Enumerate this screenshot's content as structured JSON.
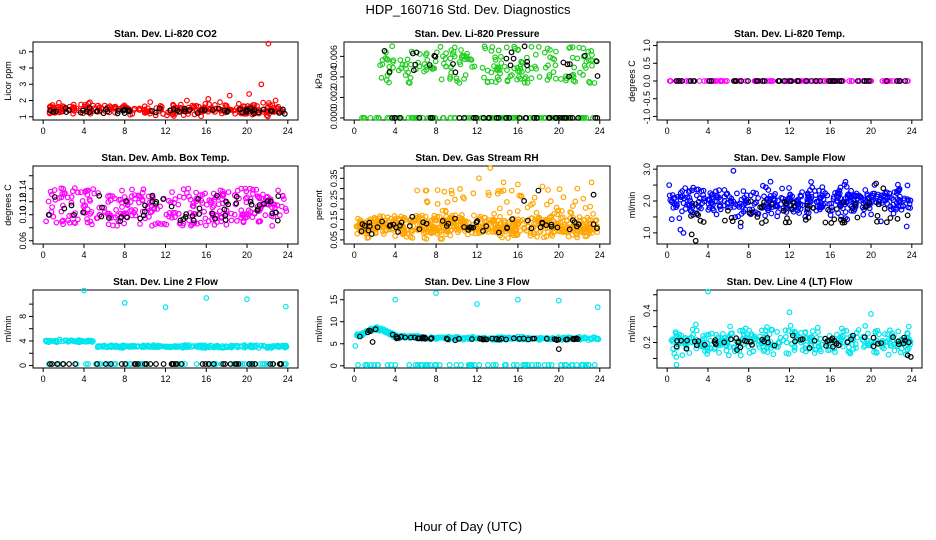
{
  "figure": {
    "title": "HDP_160716  Std. Dev. Diagnostics",
    "xlabel": "Hour of Day (UTC)"
  },
  "colors": {
    "red": "#ff0000",
    "green": "#22cc22",
    "magenta": "#ff00ff",
    "orange": "#ffa500",
    "blue": "#0000ff",
    "cyan": "#00e5ee",
    "black": "#000000"
  },
  "chart_data": [
    {
      "type": "scatter",
      "title": "Stan. Dev. Li-820 CO2",
      "ylabel": "Licor ppm",
      "xlim": [
        -1,
        25
      ],
      "ylim": [
        0.8,
        5.6
      ],
      "xticks": [
        0,
        4,
        8,
        12,
        16,
        20,
        24
      ],
      "yticks": [
        1,
        2,
        3,
        4,
        5
      ],
      "ytick_labels": [
        "1",
        "2",
        "3",
        "4",
        "5"
      ],
      "series": [
        {
          "color": "red",
          "pattern": "band",
          "x_range": [
            0.3,
            23.9
          ],
          "center": 1.45,
          "spread": 0.6,
          "n": 260,
          "extra": [
            [
              22.1,
              5.5
            ],
            [
              21.4,
              3.0
            ],
            [
              20.2,
              2.4
            ],
            [
              18.3,
              2.3
            ],
            [
              22.8,
              2.0
            ],
            [
              16.2,
              2.1
            ],
            [
              14.1,
              2.0
            ],
            [
              10.5,
              1.9
            ]
          ]
        },
        {
          "color": "black",
          "pattern": "band",
          "x_range": [
            0.5,
            23.8
          ],
          "center": 1.35,
          "spread": 0.3,
          "n": 60,
          "extra": []
        }
      ]
    },
    {
      "type": "scatter",
      "title": "Stan. Dev. Li-820 Pressure",
      "ylabel": "kPa",
      "xlim": [
        -1,
        25
      ],
      "ylim": [
        -0.0002,
        0.0074
      ],
      "xticks": [
        0,
        4,
        8,
        12,
        16,
        20,
        24
      ],
      "yticks": [
        0.0,
        0.002,
        0.004,
        0.006
      ],
      "ytick_labels": [
        "0.000",
        "0.002",
        "0.004",
        "0.006"
      ],
      "series": [
        {
          "color": "green",
          "pattern": "baseline",
          "x_range": [
            0.3,
            23.9
          ],
          "center": 0.0,
          "spread": 0.0,
          "n": 90,
          "extra": []
        },
        {
          "color": "green",
          "pattern": "scatter",
          "x_range": [
            2.5,
            23.9
          ],
          "center": 0.0052,
          "spread": 0.0036,
          "n": 200,
          "extra": []
        },
        {
          "color": "black",
          "pattern": "baseline",
          "x_range": [
            0.5,
            23.8
          ],
          "center": 0.0,
          "spread": 0.0,
          "n": 40,
          "extra": []
        },
        {
          "color": "black",
          "pattern": "scatter",
          "x_range": [
            2.5,
            23.8
          ],
          "center": 0.0055,
          "spread": 0.003,
          "n": 25,
          "extra": []
        }
      ]
    },
    {
      "type": "scatter",
      "title": "Stan. Dev. Li-820 Temp.",
      "ylabel": "degrees C",
      "xlim": [
        -1,
        25
      ],
      "ylim": [
        -1.1,
        1.1
      ],
      "xticks": [
        0,
        4,
        8,
        12,
        16,
        20,
        24
      ],
      "yticks": [
        -1.0,
        -0.5,
        0.0,
        0.5,
        1.0
      ],
      "ytick_labels": [
        "-1.0",
        "-0.5",
        "0.0",
        "0.5",
        "1.0"
      ],
      "series": [
        {
          "color": "magenta",
          "pattern": "baseline",
          "x_range": [
            0.2,
            23.9
          ],
          "center": 0.0,
          "spread": 0.0,
          "n": 110,
          "extra": []
        },
        {
          "color": "black",
          "pattern": "baseline",
          "x_range": [
            0.5,
            23.8
          ],
          "center": 0.0,
          "spread": 0.0,
          "n": 45,
          "extra": []
        }
      ]
    },
    {
      "type": "scatter",
      "title": "Stan. Dev. Amb. Box Temp.",
      "ylabel": "degrees C",
      "xlim": [
        -1,
        25
      ],
      "ylim": [
        0.055,
        0.175
      ],
      "xticks": [
        0,
        4,
        8,
        12,
        16,
        20,
        24
      ],
      "yticks": [
        0.06,
        0.08,
        0.1,
        0.12,
        0.14,
        0.16
      ],
      "ytick_labels": [
        "0.06",
        "",
        "0.10",
        "0.12",
        "0.14",
        ""
      ],
      "series": [
        {
          "color": "magenta",
          "pattern": "scatter",
          "x_range": [
            0.2,
            23.9
          ],
          "center": 0.112,
          "spread": 0.058,
          "n": 320,
          "extra": []
        },
        {
          "color": "black",
          "pattern": "scatter",
          "x_range": [
            0.5,
            23.8
          ],
          "center": 0.11,
          "spread": 0.04,
          "n": 55,
          "extra": []
        }
      ]
    },
    {
      "type": "scatter",
      "title": "Stan. Dev. Gas Stream RH",
      "ylabel": "percent",
      "xlim": [
        -1,
        25
      ],
      "ylim": [
        0.03,
        0.41
      ],
      "xticks": [
        0,
        4,
        8,
        12,
        16,
        20,
        24
      ],
      "yticks": [
        0.05,
        0.1,
        0.15,
        0.2,
        0.25,
        0.3,
        0.35,
        0.4
      ],
      "ytick_labels": [
        "0.05",
        "",
        "0.15",
        "",
        "0.25",
        "",
        "0.35",
        ""
      ],
      "series": [
        {
          "color": "orange",
          "pattern": "band",
          "x_range": [
            0.2,
            23.9
          ],
          "center": 0.12,
          "spread": 0.1,
          "n": 520,
          "extra": [
            [
              13.3,
              0.4
            ],
            [
              12.2,
              0.35
            ],
            [
              14.6,
              0.33
            ],
            [
              16.0,
              0.32
            ],
            [
              23.2,
              0.33
            ],
            [
              18.4,
              0.31
            ],
            [
              21.8,
              0.3
            ],
            [
              9.5,
              0.29
            ]
          ]
        },
        {
          "color": "orange",
          "pattern": "scatter",
          "x_range": [
            6,
            23.9
          ],
          "center": 0.24,
          "spread": 0.12,
          "n": 50,
          "extra": []
        },
        {
          "color": "black",
          "pattern": "band",
          "x_range": [
            0.5,
            23.8
          ],
          "center": 0.12,
          "spread": 0.07,
          "n": 55,
          "extra": [
            [
              18.0,
              0.29
            ],
            [
              23.4,
              0.27
            ],
            [
              16.6,
              0.24
            ]
          ]
        }
      ]
    },
    {
      "type": "scatter",
      "title": "Stan. Dev. Sample Flow",
      "ylabel": "ml/min",
      "xlim": [
        -1,
        25
      ],
      "ylim": [
        0.65,
        3.1
      ],
      "xticks": [
        0,
        4,
        8,
        12,
        16,
        20,
        24
      ],
      "yticks": [
        1.0,
        1.5,
        2.0,
        2.5,
        3.0
      ],
      "ytick_labels": [
        "1.0",
        "",
        "2.0",
        "",
        "3.0"
      ],
      "series": [
        {
          "color": "blue",
          "pattern": "band",
          "x_range": [
            0.2,
            23.9
          ],
          "center": 2.0,
          "spread": 0.9,
          "n": 420,
          "extra": [
            [
              6.5,
              2.95
            ],
            [
              0.2,
              2.5
            ],
            [
              7.2,
              1.2
            ],
            [
              1.3,
              1.1
            ],
            [
              23.5,
              1.2
            ],
            [
              1.6,
              1.0
            ]
          ]
        },
        {
          "color": "black",
          "pattern": "scatter",
          "x_range": [
            0.5,
            23.8
          ],
          "center": 1.65,
          "spread": 0.7,
          "n": 60,
          "extra": [
            [
              2.8,
              0.75
            ],
            [
              2.4,
              0.95
            ],
            [
              20.5,
              2.55
            ],
            [
              21.2,
              2.4
            ]
          ]
        }
      ]
    },
    {
      "type": "scatter",
      "title": "Stan. Dev. Line 2 Flow",
      "ylabel": "ml/min",
      "xlim": [
        -1,
        25
      ],
      "ylim": [
        -0.4,
        12.3
      ],
      "xticks": [
        0,
        4,
        8,
        12,
        16,
        20,
        24
      ],
      "yticks": [
        0,
        2,
        4,
        6,
        8,
        10
      ],
      "ytick_labels": [
        "0",
        "",
        "4",
        "",
        "8",
        ""
      ],
      "series": [
        {
          "color": "cyan",
          "pattern": "trend",
          "x_range": [
            0.2,
            23.9
          ],
          "center": 3.6,
          "spread": 0.45,
          "n": 260,
          "extra": [
            [
              4.0,
              12.2
            ],
            [
              8.0,
              10.2
            ],
            [
              12.0,
              9.5
            ],
            [
              16.0,
              11.0
            ],
            [
              20.0,
              10.8
            ],
            [
              23.8,
              9.6
            ]
          ]
        },
        {
          "color": "cyan",
          "pattern": "baseline",
          "x_range": [
            0.2,
            23.9
          ],
          "center": 0.25,
          "spread": 0.0,
          "n": 60,
          "extra": []
        },
        {
          "color": "black",
          "pattern": "baseline",
          "x_range": [
            0.5,
            23.8
          ],
          "center": 0.25,
          "spread": 0.0,
          "n": 48,
          "extra": []
        }
      ]
    },
    {
      "type": "scatter",
      "title": "Stan. Dev. Line 3 Flow",
      "ylabel": "ml/min",
      "xlim": [
        -1,
        25
      ],
      "ylim": [
        -0.5,
        17.2
      ],
      "xticks": [
        0,
        4,
        8,
        12,
        16,
        20,
        24
      ],
      "yticks": [
        0,
        5,
        10,
        15
      ],
      "ytick_labels": [
        "0",
        "5",
        "10",
        "15"
      ],
      "series": [
        {
          "color": "cyan",
          "pattern": "decay",
          "x_range": [
            0.2,
            23.9
          ],
          "center": 6.2,
          "spread": 0.7,
          "n": 300,
          "extra": [
            [
              4.0,
              15.0
            ],
            [
              8.0,
              16.5
            ],
            [
              12.0,
              14.0
            ],
            [
              16.0,
              15.0
            ],
            [
              20.0,
              14.8
            ],
            [
              23.8,
              13.3
            ],
            [
              0.1,
              4.5
            ]
          ]
        },
        {
          "color": "cyan",
          "pattern": "baseline",
          "x_range": [
            0.2,
            23.9
          ],
          "center": 0.2,
          "spread": 0.0,
          "n": 70,
          "extra": []
        },
        {
          "color": "black",
          "pattern": "decay",
          "x_range": [
            0.5,
            23.8
          ],
          "center": 6.0,
          "spread": 0.5,
          "n": 55,
          "extra": [
            [
              1.8,
              5.4
            ],
            [
              20.0,
              3.8
            ]
          ]
        }
      ]
    },
    {
      "type": "scatter",
      "title": "Stan. Dev. Line 4 (LT) Flow",
      "ylabel": "ml/min",
      "xlim": [
        -1,
        25
      ],
      "ylim": [
        0.04,
        0.53
      ],
      "xticks": [
        0,
        4,
        8,
        12,
        16,
        20,
        24
      ],
      "yticks": [
        0.1,
        0.2,
        0.3,
        0.4,
        0.5
      ],
      "ytick_labels": [
        "",
        "0.2",
        "",
        "0.4",
        ""
      ],
      "series": [
        {
          "color": "cyan",
          "pattern": "band",
          "x_range": [
            0.2,
            23.9
          ],
          "center": 0.205,
          "spread": 0.15,
          "n": 340,
          "extra": [
            [
              4.0,
              0.52
            ],
            [
              12.0,
              0.39
            ],
            [
              20.0,
              0.38
            ],
            [
              23.7,
              0.3
            ],
            [
              0.9,
              0.06
            ]
          ]
        },
        {
          "color": "black",
          "pattern": "band",
          "x_range": [
            0.5,
            23.8
          ],
          "center": 0.2,
          "spread": 0.09,
          "n": 60,
          "extra": [
            [
              23.9,
              0.11
            ],
            [
              23.6,
              0.12
            ]
          ]
        }
      ]
    }
  ]
}
